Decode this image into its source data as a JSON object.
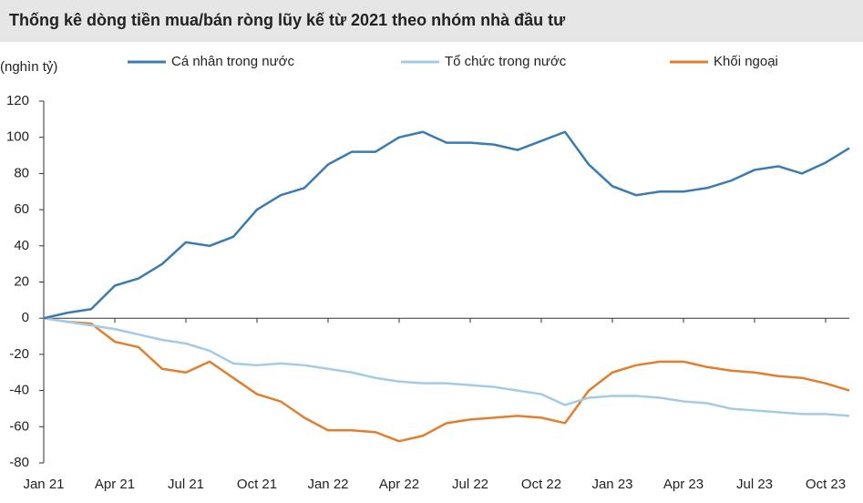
{
  "chart_data": {
    "type": "line",
    "title": "Thống kê dòng tiền mua/bán ròng lũy kế từ 2021 theo nhóm nhà đầu tư",
    "y_label": "(nghìn tỷ)",
    "x": [
      "Jan 21",
      "Feb 21",
      "Mar 21",
      "Apr 21",
      "May 21",
      "Jun 21",
      "Jul 21",
      "Aug 21",
      "Sep 21",
      "Oct 21",
      "Nov 21",
      "Dec 21",
      "Jan 22",
      "Feb 22",
      "Mar 22",
      "Apr 22",
      "May 22",
      "Jun 22",
      "Jul 22",
      "Aug 22",
      "Sep 22",
      "Oct 22",
      "Nov 22",
      "Dec 22",
      "Jan 23",
      "Feb 23",
      "Mar 23",
      "Apr 23",
      "May 23",
      "Jun 23",
      "Jul 23",
      "Aug 23",
      "Sep 23",
      "Oct 23",
      "Nov 23"
    ],
    "xticks": [
      "Jan 21",
      "Apr 21",
      "Jul 21",
      "Oct 21",
      "Jan 22",
      "Apr 22",
      "Jul 22",
      "Oct 22",
      "Jan 23",
      "Apr 23",
      "Jul 23",
      "Oct 23"
    ],
    "series": [
      {
        "name": "Cá nhân trong nước",
        "color": "#3a7bb0",
        "values": [
          0,
          3,
          5,
          18,
          22,
          30,
          42,
          40,
          45,
          60,
          68,
          72,
          85,
          92,
          92,
          100,
          103,
          97,
          97,
          96,
          93,
          98,
          103,
          85,
          73,
          68,
          70,
          70,
          72,
          76,
          82,
          84,
          80,
          86,
          94
        ]
      },
      {
        "name": "Tổ chức trong nước",
        "color": "#a3cbe6",
        "values": [
          0,
          -2,
          -4,
          -6,
          -9,
          -12,
          -14,
          -18,
          -25,
          -26,
          -25,
          -26,
          -28,
          -30,
          -33,
          -35,
          -36,
          -36,
          -37,
          -38,
          -40,
          -42,
          -48,
          -44,
          -43,
          -43,
          -44,
          -46,
          -47,
          -50,
          -51,
          -52,
          -53,
          -53,
          -54
        ]
      },
      {
        "name": "Khối ngoại",
        "color": "#e27f2d",
        "values": [
          0,
          -2,
          -3,
          -13,
          -16,
          -28,
          -30,
          -24,
          -33,
          -42,
          -46,
          -55,
          -62,
          -62,
          -63,
          -68,
          -65,
          -58,
          -56,
          -55,
          -54,
          -55,
          -58,
          -40,
          -30,
          -26,
          -24,
          -24,
          -27,
          -29,
          -30,
          -32,
          -33,
          -36,
          -40
        ]
      }
    ],
    "ylim": [
      -80,
      120
    ],
    "yticks": [
      -80,
      -60,
      -40,
      -20,
      0,
      20,
      40,
      60,
      80,
      100,
      120
    ],
    "negative_tick_color": "#e0301e",
    "grid": false,
    "legend": "top"
  }
}
